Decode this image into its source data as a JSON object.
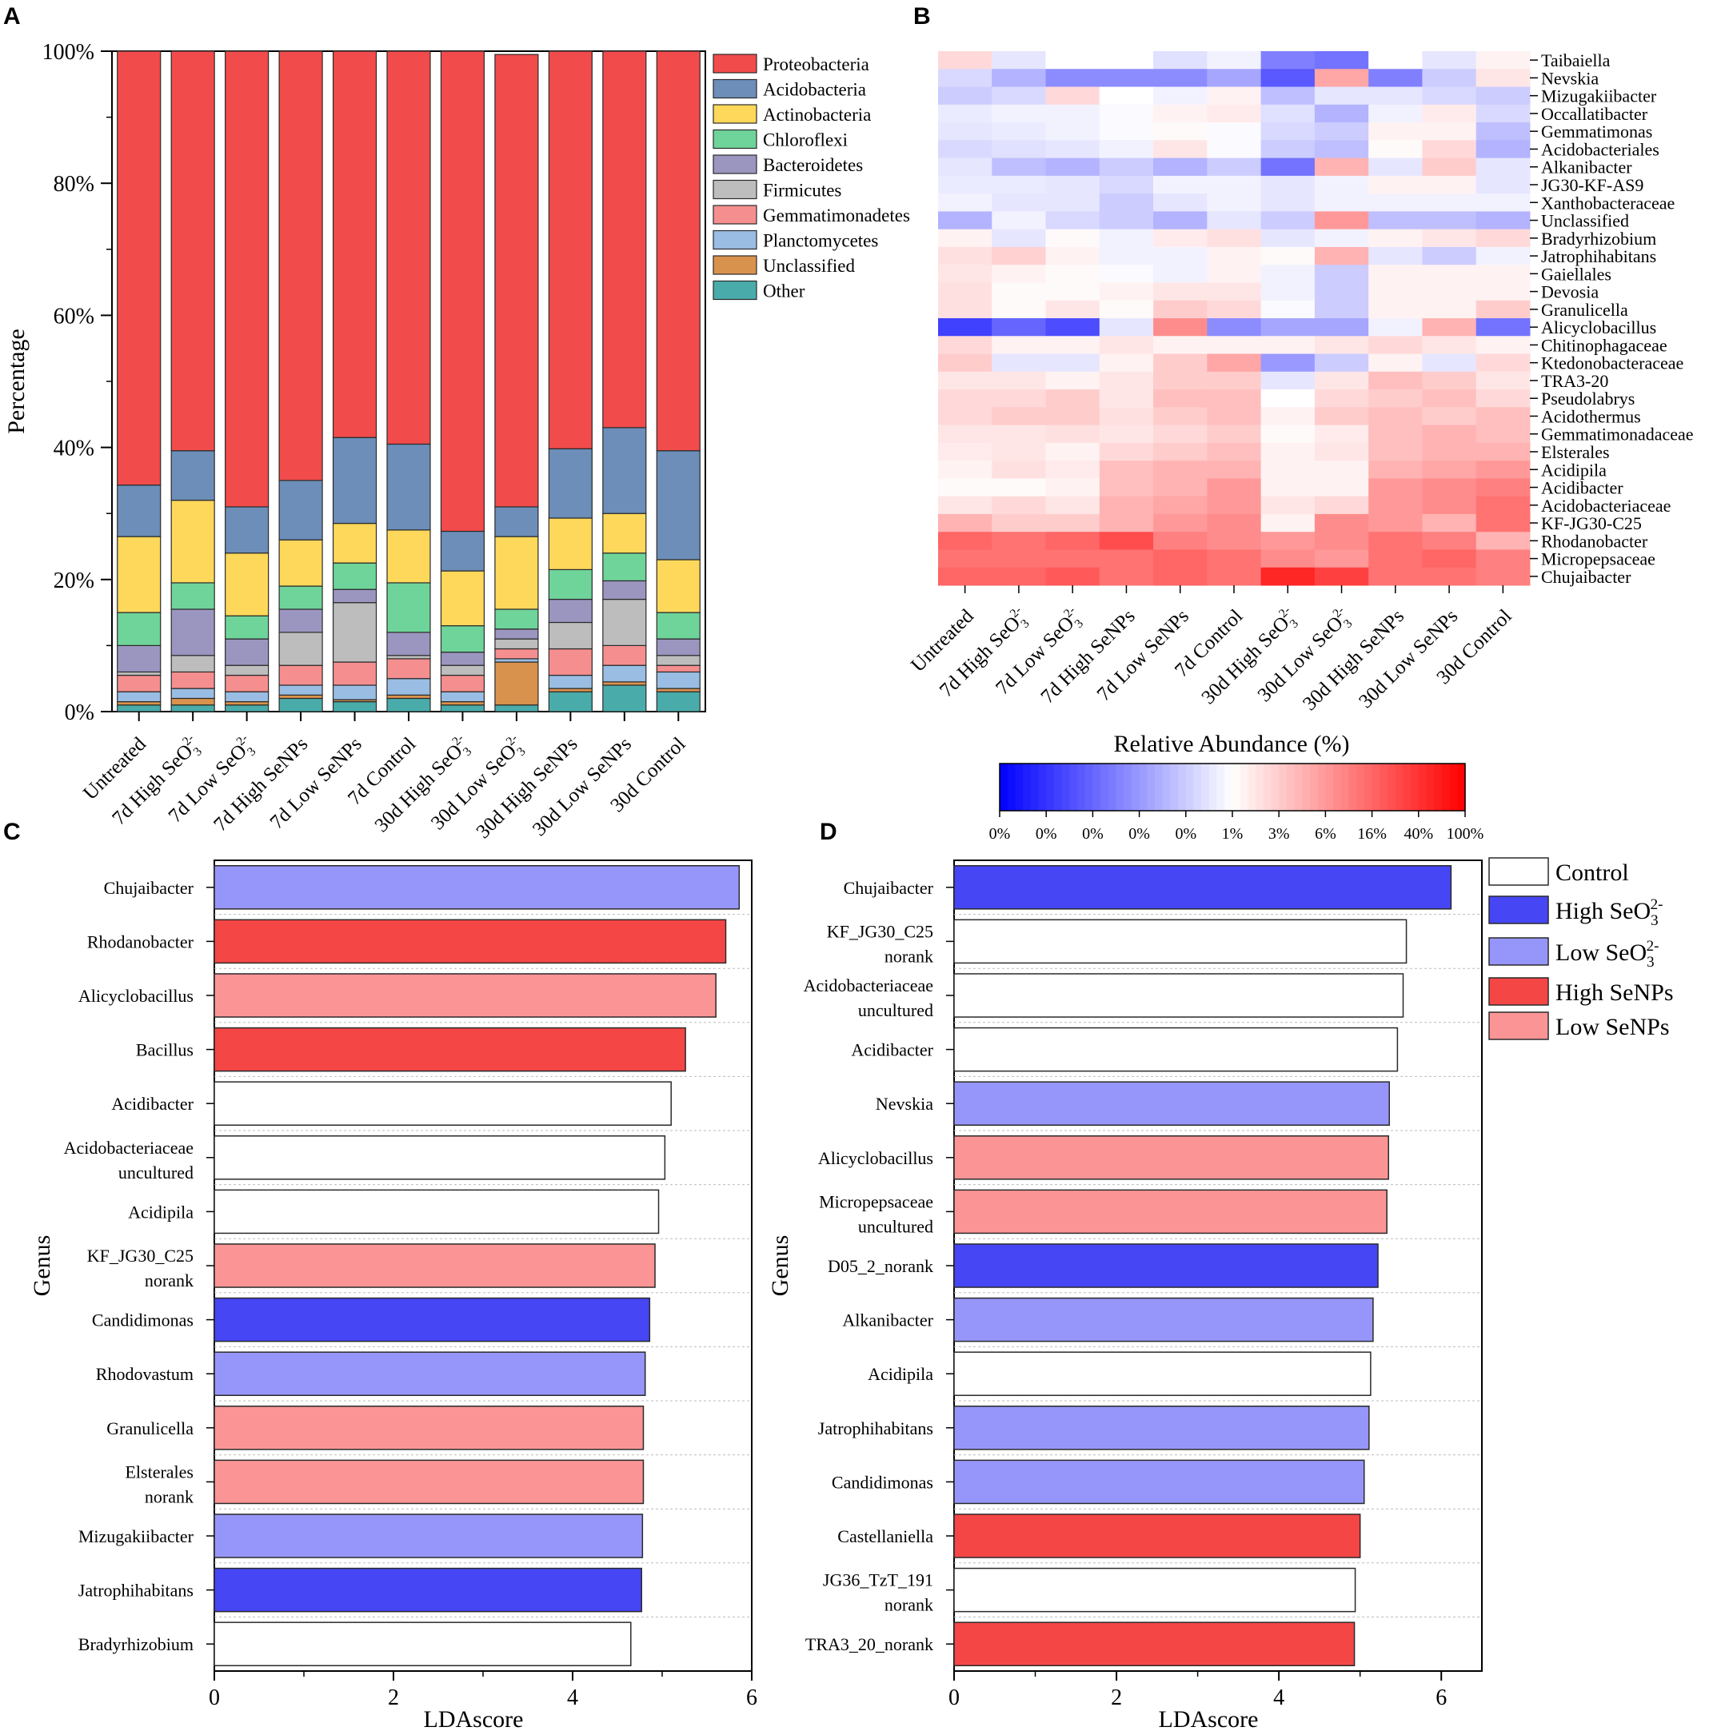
{
  "panel_labels": [
    "A",
    "B",
    "C",
    "D"
  ],
  "chart_data": [
    {
      "id": "A",
      "type": "bar",
      "stacked": true,
      "title": "",
      "xlabel": "",
      "ylabel": "Percentage",
      "ylim": [
        0,
        100
      ],
      "yticks": [
        "0%",
        "20%",
        "40%",
        "60%",
        "80%",
        "100%"
      ],
      "categories": [
        "Untreated",
        "7d High SeO3 2-",
        "7d Low SeO3 2-",
        "7d High SeNPs",
        "7d Low SeNPs",
        "7d Control",
        "30d High SeO3 2-",
        "30d Low SeO3 2-",
        "30d High SeNPs",
        "30d Low SeNPs",
        "30d Control"
      ],
      "series": [
        {
          "name": "Other",
          "color": "#4aacaa",
          "values": [
            1.0,
            1.0,
            1.0,
            2.0,
            1.5,
            2.0,
            1.0,
            1.0,
            3.0,
            4.0,
            3.0
          ]
        },
        {
          "name": "Unclassified",
          "color": "#d9924d",
          "values": [
            0.5,
            1.0,
            0.5,
            0.5,
            0.3,
            0.5,
            0.5,
            6.5,
            0.5,
            0.5,
            0.5
          ]
        },
        {
          "name": "Planctomycetes",
          "color": "#99bde3",
          "values": [
            1.5,
            1.5,
            1.5,
            1.5,
            2.2,
            2.5,
            1.5,
            0.5,
            2.0,
            2.5,
            2.5
          ]
        },
        {
          "name": "Gemmatimonadetes",
          "color": "#f58f8f",
          "values": [
            2.5,
            2.5,
            2.5,
            3.0,
            3.5,
            3.0,
            2.5,
            1.5,
            4.0,
            3.0,
            1.0
          ]
        },
        {
          "name": "Firmicutes",
          "color": "#bdbdbd",
          "values": [
            0.5,
            2.5,
            1.5,
            5.0,
            9.0,
            0.5,
            1.5,
            1.5,
            4.0,
            7.0,
            1.5
          ]
        },
        {
          "name": "Bacteroidetes",
          "color": "#9b96c0",
          "values": [
            4.0,
            7.0,
            4.0,
            3.5,
            2.0,
            3.5,
            2.0,
            1.5,
            3.5,
            2.8,
            2.5
          ]
        },
        {
          "name": "Chloroflexi",
          "color": "#6fd49a",
          "values": [
            5.0,
            4.0,
            3.5,
            3.5,
            4.0,
            7.5,
            4.0,
            3.0,
            4.5,
            4.2,
            4.0
          ]
        },
        {
          "name": "Actinobacteria",
          "color": "#fdd85a",
          "values": [
            11.5,
            12.5,
            9.5,
            7.0,
            6.0,
            8.0,
            8.3,
            11.0,
            7.8,
            6.0,
            8.0
          ]
        },
        {
          "name": "Acidobacteria",
          "color": "#6c8eb8",
          "values": [
            7.8,
            7.5,
            7.0,
            9.0,
            13.0,
            13.0,
            6.0,
            4.5,
            10.5,
            13.0,
            16.5
          ]
        },
        {
          "name": "Proteobacteria",
          "color": "#f24b4b",
          "values": [
            65.7,
            60.5,
            69.0,
            65.0,
            58.5,
            59.5,
            72.7,
            68.5,
            60.2,
            57.0,
            60.5
          ]
        }
      ],
      "legend": [
        "Proteobacteria",
        "Acidobacteria",
        "Actinobacteria",
        "Chloroflexi",
        "Bacteroidetes",
        "Firmicutes",
        "Gemmatimonadetes",
        "Planctomycetes",
        "Unclassified",
        "Other"
      ],
      "legend_position": "right"
    },
    {
      "id": "B",
      "type": "heatmap",
      "title": "",
      "columns": [
        "Untreated",
        "7d High SeO3 2-",
        "7d Low SeO3 2-",
        "7d High SeNPs",
        "7d Low SeNPs",
        "7d Control",
        "30d High SeO3 2-",
        "30d Low SeO3 2-",
        "30d High SeNPs",
        "30d Low SeNPs",
        "30d Control"
      ],
      "rows": [
        "Taibaiella",
        "Nevskia",
        "Mizugakiibacter",
        "Occallatibacter",
        "Gemmatimonas",
        "Acidobacteriales",
        "Alkanibacter",
        "JG30-KF-AS9",
        "Xanthobacteraceae",
        "Unclassified",
        "Bradyrhizobium",
        "Jatrophihabitans",
        "Gaiellales",
        "Devosia",
        "Granulicella",
        "Alicyclobacillus",
        "Chitinophagaceae",
        "Ktedonobacteraceae",
        "TRA3-20",
        "Pseudolabrys",
        "Acidothermus",
        "Gemmatimonadaceae",
        "Elsterales",
        "Acidipila",
        "Acidibacter",
        "Acidobacteriaceae",
        "KF-JG30-C25",
        "Rhodanobacter",
        "Micropepsaceae",
        "Chujaibacter"
      ],
      "values": [
        [
          0.15,
          -0.1,
          0.0,
          0.0,
          -0.12,
          -0.05,
          -0.5,
          -0.55,
          0.0,
          -0.1,
          0.05
        ],
        [
          -0.15,
          -0.3,
          -0.45,
          -0.45,
          -0.45,
          -0.35,
          -0.65,
          0.35,
          -0.5,
          -0.2,
          0.1
        ],
        [
          -0.2,
          -0.15,
          0.15,
          0.0,
          -0.05,
          0.05,
          -0.25,
          -0.1,
          -0.1,
          -0.15,
          -0.2
        ],
        [
          -0.08,
          -0.05,
          -0.05,
          -0.02,
          0.05,
          0.08,
          -0.12,
          -0.3,
          -0.05,
          0.08,
          -0.15
        ],
        [
          -0.1,
          -0.08,
          -0.05,
          -0.02,
          0.02,
          -0.02,
          -0.15,
          -0.2,
          0.05,
          0.05,
          -0.25
        ],
        [
          -0.15,
          -0.12,
          -0.1,
          -0.05,
          0.1,
          -0.02,
          -0.2,
          -0.25,
          0.02,
          0.15,
          -0.3
        ],
        [
          -0.1,
          -0.25,
          -0.3,
          -0.2,
          -0.3,
          -0.2,
          -0.55,
          0.3,
          -0.1,
          0.2,
          -0.1
        ],
        [
          -0.08,
          -0.08,
          -0.1,
          -0.15,
          -0.05,
          -0.05,
          -0.1,
          -0.05,
          0.05,
          0.05,
          -0.1
        ],
        [
          -0.05,
          -0.1,
          -0.1,
          -0.2,
          -0.1,
          -0.05,
          -0.1,
          -0.05,
          -0.05,
          -0.05,
          -0.05
        ],
        [
          -0.3,
          -0.05,
          -0.15,
          -0.2,
          -0.3,
          -0.1,
          -0.2,
          0.4,
          -0.25,
          -0.25,
          -0.3
        ],
        [
          0.05,
          -0.1,
          0.02,
          -0.05,
          0.08,
          0.12,
          -0.1,
          -0.05,
          0.05,
          0.1,
          0.15
        ],
        [
          0.12,
          0.18,
          0.05,
          -0.05,
          -0.05,
          0.05,
          0.02,
          0.3,
          -0.1,
          -0.2,
          -0.05
        ],
        [
          0.1,
          0.05,
          0.02,
          -0.02,
          -0.05,
          0.05,
          -0.05,
          -0.2,
          0.05,
          0.05,
          0.05
        ],
        [
          0.12,
          0.02,
          0.02,
          0.05,
          0.1,
          0.1,
          -0.05,
          -0.2,
          0.05,
          0.05,
          0.05
        ],
        [
          0.12,
          0.02,
          0.1,
          0.02,
          0.2,
          0.15,
          -0.02,
          -0.2,
          0.05,
          0.05,
          0.2
        ],
        [
          -0.75,
          -0.6,
          -0.7,
          -0.1,
          0.45,
          -0.45,
          -0.35,
          -0.35,
          -0.05,
          0.3,
          -0.55
        ],
        [
          0.15,
          0.05,
          0.05,
          0.1,
          0.05,
          0.05,
          0.05,
          0.1,
          0.15,
          0.1,
          0.05
        ],
        [
          0.2,
          -0.1,
          -0.1,
          0.05,
          0.2,
          0.35,
          -0.4,
          -0.2,
          0.05,
          -0.1,
          0.15
        ],
        [
          0.1,
          0.1,
          0.05,
          0.1,
          0.2,
          0.2,
          -0.1,
          0.1,
          0.25,
          0.2,
          0.1
        ],
        [
          0.15,
          0.15,
          0.2,
          0.1,
          0.25,
          0.25,
          0.0,
          0.15,
          0.2,
          0.25,
          0.15
        ],
        [
          0.15,
          0.2,
          0.2,
          0.12,
          0.2,
          0.25,
          0.05,
          0.2,
          0.25,
          0.2,
          0.25
        ],
        [
          0.1,
          0.1,
          0.12,
          0.1,
          0.15,
          0.2,
          0.02,
          0.08,
          0.25,
          0.3,
          0.25
        ],
        [
          0.08,
          0.1,
          0.05,
          0.15,
          0.2,
          0.25,
          0.05,
          0.1,
          0.25,
          0.3,
          0.3
        ],
        [
          0.05,
          0.12,
          0.08,
          0.25,
          0.3,
          0.3,
          0.05,
          0.05,
          0.3,
          0.35,
          0.4
        ],
        [
          0.02,
          0.02,
          0.05,
          0.25,
          0.3,
          0.4,
          0.05,
          0.05,
          0.4,
          0.45,
          0.5
        ],
        [
          0.1,
          0.15,
          0.1,
          0.3,
          0.35,
          0.4,
          0.1,
          0.15,
          0.4,
          0.45,
          0.55
        ],
        [
          0.3,
          0.2,
          0.2,
          0.3,
          0.4,
          0.45,
          0.05,
          0.45,
          0.4,
          0.3,
          0.55
        ],
        [
          0.6,
          0.55,
          0.6,
          0.7,
          0.5,
          0.45,
          0.4,
          0.45,
          0.55,
          0.5,
          0.3
        ],
        [
          0.55,
          0.55,
          0.55,
          0.55,
          0.6,
          0.55,
          0.45,
          0.4,
          0.55,
          0.6,
          0.5
        ],
        [
          0.6,
          0.6,
          0.65,
          0.55,
          0.6,
          0.55,
          0.85,
          0.75,
          0.55,
          0.55,
          0.5
        ]
      ],
      "colorbar_title": "Relative Abundance (%)",
      "colorbar_ticks": [
        "0%",
        "0%",
        "0%",
        "0%",
        "0%",
        "1%",
        "3%",
        "6%",
        "16%",
        "40%",
        "100%"
      ],
      "colors": {
        "low": "#0000ff",
        "mid": "#ffffff",
        "high": "#ff0000"
      }
    },
    {
      "id": "C",
      "type": "bar",
      "orientation": "horizontal",
      "title": "",
      "xlabel": "LDAscore",
      "ylabel": "Genus",
      "xlim": [
        0,
        6
      ],
      "xticks": [
        "0",
        "2",
        "4",
        "6"
      ],
      "categories": [
        {
          "line1": "Chujaibacter",
          "line2": ""
        },
        {
          "line1": "Rhodanobacter",
          "line2": ""
        },
        {
          "line1": "Alicyclobacillus",
          "line2": ""
        },
        {
          "line1": "Bacillus",
          "line2": ""
        },
        {
          "line1": "Acidibacter",
          "line2": ""
        },
        {
          "line1": "Acidobacteriaceae",
          "line2": "uncultured"
        },
        {
          "line1": "Acidipila",
          "line2": ""
        },
        {
          "line1": "KF_JG30_C25",
          "line2": "norank"
        },
        {
          "line1": "Candidimonas",
          "line2": ""
        },
        {
          "line1": "Rhodovastum",
          "line2": ""
        },
        {
          "line1": "Granulicella",
          "line2": ""
        },
        {
          "line1": "Elsterales",
          "line2": "norank"
        },
        {
          "line1": "Mizugakiibacter",
          "line2": ""
        },
        {
          "line1": "Jatrophihabitans",
          "line2": ""
        },
        {
          "line1": "Bradyrhizobium",
          "line2": ""
        }
      ],
      "values": [
        5.86,
        5.71,
        5.6,
        5.26,
        5.1,
        5.03,
        4.96,
        4.92,
        4.86,
        4.81,
        4.79,
        4.79,
        4.78,
        4.77,
        4.65
      ],
      "groups": [
        "Low SeO3",
        "High SeNPs",
        "Low SeNPs",
        "High SeNPs",
        "Control",
        "Control",
        "Control",
        "Low SeNPs",
        "High SeO3",
        "Low SeO3",
        "Low SeNPs",
        "Low SeNPs",
        "Low SeO3",
        "High SeO3",
        "Control"
      ]
    },
    {
      "id": "D",
      "type": "bar",
      "orientation": "horizontal",
      "title": "",
      "xlabel": "LDAscore",
      "ylabel": "Genus",
      "xlim": [
        0,
        6.5
      ],
      "xticks": [
        "0",
        "2",
        "4",
        "6"
      ],
      "categories": [
        {
          "line1": "Chujaibacter",
          "line2": ""
        },
        {
          "line1": "KF_JG30_C25",
          "line2": "norank"
        },
        {
          "line1": "Acidobacteriaceae",
          "line2": "uncultured"
        },
        {
          "line1": "Acidibacter",
          "line2": ""
        },
        {
          "line1": "Nevskia",
          "line2": ""
        },
        {
          "line1": "Alicyclobacillus",
          "line2": ""
        },
        {
          "line1": "Micropepsaceae",
          "line2": "uncultured"
        },
        {
          "line1": "D05_2_norank",
          "line2": ""
        },
        {
          "line1": "Alkanibacter",
          "line2": ""
        },
        {
          "line1": "Acidipila",
          "line2": ""
        },
        {
          "line1": "Jatrophihabitans",
          "line2": ""
        },
        {
          "line1": "Candidimonas",
          "line2": ""
        },
        {
          "line1": "Castellaniella",
          "line2": ""
        },
        {
          "line1": "JG36_TzT_191",
          "line2": "norank"
        },
        {
          "line1": "TRA3_20_norank",
          "line2": ""
        }
      ],
      "values": [
        6.12,
        5.57,
        5.53,
        5.46,
        5.36,
        5.35,
        5.33,
        5.22,
        5.16,
        5.13,
        5.11,
        5.05,
        5.0,
        4.94,
        4.93
      ],
      "groups": [
        "High SeO3",
        "Control",
        "Control",
        "Control",
        "Low SeO3",
        "Low SeNPs",
        "Low SeNPs",
        "High SeO3",
        "Low SeO3",
        "Control",
        "Low SeO3",
        "Low SeO3",
        "High SeNPs",
        "Control",
        "High SeNPs"
      ]
    }
  ],
  "lda_legend": [
    {
      "key": "Control",
      "label": "Control",
      "sup": "",
      "sub": "",
      "color": "#ffffff"
    },
    {
      "key": "High SeO3",
      "label": "High SeO",
      "sup": "2-",
      "sub": "3",
      "color": "#4646f5"
    },
    {
      "key": "Low SeO3",
      "label": "Low SeO",
      "sup": "2-",
      "sub": "3",
      "color": "#9696fa"
    },
    {
      "key": "High SeNPs",
      "label": "High SeNPs",
      "sup": "",
      "sub": "",
      "color": "#f54646"
    },
    {
      "key": "Low SeNPs",
      "label": "Low SeNPs",
      "sup": "",
      "sub": "",
      "color": "#fb9595"
    }
  ]
}
